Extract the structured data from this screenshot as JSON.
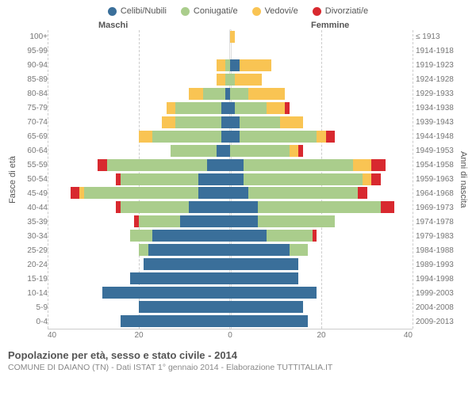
{
  "legend": {
    "celibi": {
      "label": "Celibi/Nubili",
      "color": "#3a6f9a"
    },
    "coniugati": {
      "label": "Coniugati/e",
      "color": "#aacd8c"
    },
    "vedovi": {
      "label": "Vedovi/e",
      "color": "#f9c453"
    },
    "divorziati": {
      "label": "Divorziati/e",
      "color": "#d8292f"
    }
  },
  "sides": {
    "maschi": "Maschi",
    "femmine": "Femmine"
  },
  "axis": {
    "y_left_label": "Fasce di età",
    "y_right_label": "Anni di nascita",
    "x_max": 40,
    "x_ticks": [
      40,
      20,
      0,
      20,
      40
    ],
    "grid_color": "#cccccc",
    "background": "#ffffff"
  },
  "age_labels": [
    "100+",
    "95-99",
    "90-94",
    "85-89",
    "80-84",
    "75-79",
    "70-74",
    "65-69",
    "60-64",
    "55-59",
    "50-54",
    "45-49",
    "40-44",
    "35-39",
    "30-34",
    "25-29",
    "20-24",
    "15-19",
    "10-14",
    "5-9",
    "0-4"
  ],
  "birth_labels": [
    "≤ 1913",
    "1914-1918",
    "1919-1923",
    "1924-1928",
    "1929-1933",
    "1934-1938",
    "1939-1943",
    "1944-1948",
    "1949-1953",
    "1954-1958",
    "1959-1963",
    "1964-1968",
    "1969-1973",
    "1974-1978",
    "1979-1983",
    "1984-1988",
    "1989-1993",
    "1994-1998",
    "1999-2003",
    "2004-2008",
    "2009-2013"
  ],
  "data": [
    {
      "m": {
        "cel": 0,
        "con": 0,
        "ved": 0,
        "div": 0
      },
      "f": {
        "cel": 0,
        "con": 0,
        "ved": 1,
        "div": 0
      }
    },
    {
      "m": {
        "cel": 0,
        "con": 0,
        "ved": 0,
        "div": 0
      },
      "f": {
        "cel": 0,
        "con": 0,
        "ved": 0,
        "div": 0
      }
    },
    {
      "m": {
        "cel": 0,
        "con": 1,
        "ved": 2,
        "div": 0
      },
      "f": {
        "cel": 2,
        "con": 0,
        "ved": 7,
        "div": 0
      }
    },
    {
      "m": {
        "cel": 0,
        "con": 1,
        "ved": 2,
        "div": 0
      },
      "f": {
        "cel": 0,
        "con": 1,
        "ved": 6,
        "div": 0
      }
    },
    {
      "m": {
        "cel": 1,
        "con": 5,
        "ved": 3,
        "div": 0
      },
      "f": {
        "cel": 0,
        "con": 4,
        "ved": 8,
        "div": 0
      }
    },
    {
      "m": {
        "cel": 2,
        "con": 10,
        "ved": 2,
        "div": 0
      },
      "f": {
        "cel": 1,
        "con": 7,
        "ved": 4,
        "div": 1
      }
    },
    {
      "m": {
        "cel": 2,
        "con": 10,
        "ved": 3,
        "div": 0
      },
      "f": {
        "cel": 2,
        "con": 9,
        "ved": 5,
        "div": 0
      }
    },
    {
      "m": {
        "cel": 2,
        "con": 15,
        "ved": 3,
        "div": 0
      },
      "f": {
        "cel": 2,
        "con": 17,
        "ved": 2,
        "div": 2
      }
    },
    {
      "m": {
        "cel": 3,
        "con": 10,
        "ved": 0,
        "div": 0
      },
      "f": {
        "cel": 0,
        "con": 13,
        "ved": 2,
        "div": 1
      }
    },
    {
      "m": {
        "cel": 5,
        "con": 22,
        "ved": 0,
        "div": 2
      },
      "f": {
        "cel": 3,
        "con": 24,
        "ved": 4,
        "div": 3
      }
    },
    {
      "m": {
        "cel": 7,
        "con": 17,
        "ved": 0,
        "div": 1
      },
      "f": {
        "cel": 3,
        "con": 26,
        "ved": 2,
        "div": 2
      }
    },
    {
      "m": {
        "cel": 7,
        "con": 25,
        "ved": 1,
        "div": 2
      },
      "f": {
        "cel": 4,
        "con": 24,
        "ved": 0,
        "div": 2
      }
    },
    {
      "m": {
        "cel": 9,
        "con": 15,
        "ved": 0,
        "div": 1
      },
      "f": {
        "cel": 6,
        "con": 27,
        "ved": 0,
        "div": 3
      }
    },
    {
      "m": {
        "cel": 11,
        "con": 9,
        "ved": 0,
        "div": 1
      },
      "f": {
        "cel": 6,
        "con": 17,
        "ved": 0,
        "div": 0
      }
    },
    {
      "m": {
        "cel": 17,
        "con": 5,
        "ved": 0,
        "div": 0
      },
      "f": {
        "cel": 8,
        "con": 10,
        "ved": 0,
        "div": 1
      }
    },
    {
      "m": {
        "cel": 18,
        "con": 2,
        "ved": 0,
        "div": 0
      },
      "f": {
        "cel": 13,
        "con": 4,
        "ved": 0,
        "div": 0
      }
    },
    {
      "m": {
        "cel": 19,
        "con": 0,
        "ved": 0,
        "div": 0
      },
      "f": {
        "cel": 15,
        "con": 0,
        "ved": 0,
        "div": 0
      }
    },
    {
      "m": {
        "cel": 22,
        "con": 0,
        "ved": 0,
        "div": 0
      },
      "f": {
        "cel": 15,
        "con": 0,
        "ved": 0,
        "div": 0
      }
    },
    {
      "m": {
        "cel": 28,
        "con": 0,
        "ved": 0,
        "div": 0
      },
      "f": {
        "cel": 19,
        "con": 0,
        "ved": 0,
        "div": 0
      }
    },
    {
      "m": {
        "cel": 20,
        "con": 0,
        "ved": 0,
        "div": 0
      },
      "f": {
        "cel": 16,
        "con": 0,
        "ved": 0,
        "div": 0
      }
    },
    {
      "m": {
        "cel": 24,
        "con": 0,
        "ved": 0,
        "div": 0
      },
      "f": {
        "cel": 17,
        "con": 0,
        "ved": 0,
        "div": 0
      }
    }
  ],
  "footer": {
    "title": "Popolazione per età, sesso e stato civile - 2014",
    "subtitle": "COMUNE DI DAIANO (TN) - Dati ISTAT 1° gennaio 2014 - Elaborazione TUTTITALIA.IT"
  }
}
